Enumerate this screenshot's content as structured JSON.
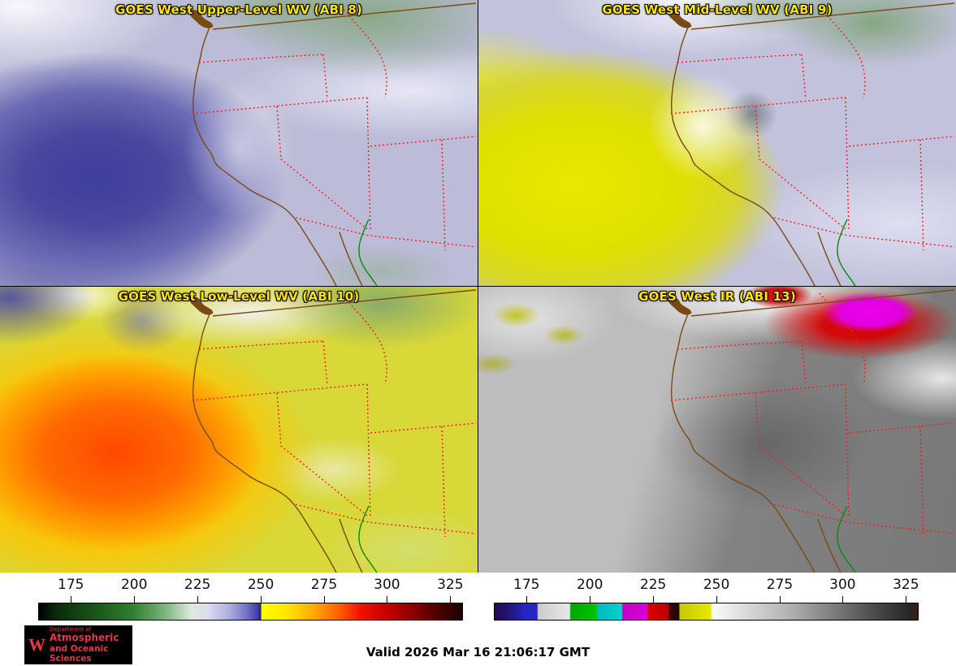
{
  "panels": [
    {
      "title": "GOES West Upper-Level WV (ABI 8)"
    },
    {
      "title": "GOES West Mid-Level WV (ABI 9)"
    },
    {
      "title": "GOES West Low-Level WV (ABI 10)"
    },
    {
      "title": "GOES West IR (ABI 13)"
    }
  ],
  "colorbar_ticks": [
    "175",
    "200",
    "225",
    "250",
    "275",
    "300",
    "325"
  ],
  "tick_positions_pct": [
    7.7,
    22.6,
    37.5,
    52.4,
    67.3,
    82.1,
    97.0
  ],
  "colorbars": {
    "wv": {
      "stops": [
        [
          0,
          "#000000"
        ],
        [
          4,
          "#0a2a0a"
        ],
        [
          12,
          "#174f17"
        ],
        [
          22,
          "#2f7d2f"
        ],
        [
          30,
          "#7fb57f"
        ],
        [
          36,
          "#dfe9df"
        ],
        [
          40,
          "#dcdcf0"
        ],
        [
          45,
          "#adadde"
        ],
        [
          49,
          "#7474c6"
        ],
        [
          51.8,
          "#3c3ca2"
        ],
        [
          52.4,
          "#1f1f7d"
        ],
        [
          52.6,
          "#ffff00"
        ],
        [
          59,
          "#ffe400"
        ],
        [
          65,
          "#ffa800"
        ],
        [
          71,
          "#ff5e00"
        ],
        [
          76,
          "#f21000"
        ],
        [
          82,
          "#c80000"
        ],
        [
          88,
          "#900000"
        ],
        [
          94,
          "#500000"
        ],
        [
          100,
          "#1e0000"
        ]
      ]
    },
    "ir": {
      "stops": [
        [
          0,
          "#26084a"
        ],
        [
          4,
          "#211883"
        ],
        [
          7,
          "#2626c3"
        ],
        [
          10,
          "#2626c3"
        ],
        [
          10.3,
          "#cccccc"
        ],
        [
          17.7,
          "#e8e8e8"
        ],
        [
          18,
          "#00a800"
        ],
        [
          24,
          "#00c400"
        ],
        [
          24.3,
          "#00bcbc"
        ],
        [
          30,
          "#00d2d2"
        ],
        [
          30.3,
          "#c400c4"
        ],
        [
          36,
          "#da00da"
        ],
        [
          36.3,
          "#dc0000"
        ],
        [
          41,
          "#bc0000"
        ],
        [
          41.3,
          "#460000"
        ],
        [
          43.5,
          "#140808"
        ],
        [
          43.8,
          "#c8c800"
        ],
        [
          51,
          "#e8e800"
        ],
        [
          51.5,
          "#fafafa"
        ],
        [
          70,
          "#b0b0b0"
        ],
        [
          90,
          "#4a4a4a"
        ],
        [
          98,
          "#262626"
        ],
        [
          100,
          "#3c1e14"
        ]
      ]
    }
  },
  "map_colors": {
    "coastline": "#7a4a14",
    "state_borders": "#ff1a1a",
    "rivers": "#009000"
  },
  "title_color": "#ffe400",
  "logo": {
    "crest": "W",
    "dept": "Department of",
    "line1": "Atmospheric",
    "line2": "and Oceanic Sciences",
    "bg": "#000000",
    "text_color": "#e03a45"
  },
  "footer": {
    "valid": "Valid 2026 Mar 16 21:06:17 GMT"
  }
}
